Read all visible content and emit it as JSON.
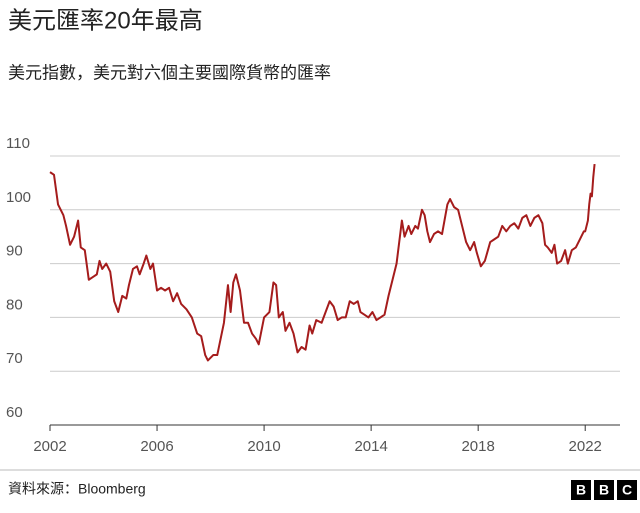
{
  "chart_data": {
    "type": "line",
    "title": "美元匯率20年最高",
    "subtitle": "美元指數，美元對六個主要國際貨幣的匯率",
    "source": "資料來源：Bloomberg",
    "logo": [
      "B",
      "B",
      "C"
    ],
    "x": [
      2002.0,
      2002.15,
      2002.3,
      2002.5,
      2002.6,
      2002.75,
      2002.9,
      2003.05,
      2003.15,
      2003.3,
      2003.45,
      2003.6,
      2003.75,
      2003.85,
      2003.95,
      2004.1,
      2004.25,
      2004.4,
      2004.55,
      2004.7,
      2004.85,
      2004.95,
      2005.1,
      2005.25,
      2005.35,
      2005.5,
      2005.6,
      2005.75,
      2005.85,
      2006.0,
      2006.15,
      2006.3,
      2006.45,
      2006.6,
      2006.75,
      2006.9,
      2007.1,
      2007.3,
      2007.5,
      2007.65,
      2007.8,
      2007.9,
      2008.1,
      2008.25,
      2008.5,
      2008.65,
      2008.75,
      2008.85,
      2008.95,
      2009.1,
      2009.25,
      2009.4,
      2009.55,
      2009.7,
      2009.8,
      2010.0,
      2010.2,
      2010.35,
      2010.45,
      2010.55,
      2010.7,
      2010.8,
      2010.95,
      2011.1,
      2011.25,
      2011.4,
      2011.55,
      2011.7,
      2011.8,
      2011.95,
      2012.15,
      2012.3,
      2012.45,
      2012.6,
      2012.75,
      2012.9,
      2013.05,
      2013.2,
      2013.35,
      2013.5,
      2013.6,
      2013.75,
      2013.9,
      2014.05,
      2014.2,
      2014.35,
      2014.5,
      2014.65,
      2014.8,
      2014.95,
      2015.15,
      2015.25,
      2015.4,
      2015.5,
      2015.65,
      2015.75,
      2015.9,
      2016.0,
      2016.1,
      2016.2,
      2016.35,
      2016.5,
      2016.65,
      2016.85,
      2016.95,
      2017.1,
      2017.25,
      2017.4,
      2017.55,
      2017.7,
      2017.85,
      2017.95,
      2018.1,
      2018.25,
      2018.45,
      2018.6,
      2018.75,
      2018.9,
      2019.05,
      2019.2,
      2019.35,
      2019.5,
      2019.65,
      2019.8,
      2019.95,
      2020.1,
      2020.25,
      2020.4,
      2020.5,
      2020.6,
      2020.75,
      2020.85,
      2020.95,
      2021.1,
      2021.25,
      2021.35,
      2021.5,
      2021.65,
      2021.8,
      2021.95,
      2022.0,
      2022.1,
      2022.15,
      2022.2,
      2022.25,
      2022.3,
      2022.35
    ],
    "series": [
      {
        "color": "#a51c1c",
        "values": [
          107,
          106.5,
          101,
          99,
          97,
          93.5,
          95,
          98,
          93,
          92.5,
          87,
          87.5,
          88,
          90.5,
          89,
          90,
          88.5,
          83,
          81,
          84,
          83.5,
          86,
          89,
          89.5,
          88,
          90,
          91.5,
          89,
          90,
          85,
          85.5,
          85,
          85.5,
          83,
          84.5,
          82.5,
          81.5,
          80,
          77,
          76.5,
          73,
          72,
          73,
          73,
          79,
          86,
          81,
          86.5,
          88,
          85,
          79,
          79,
          77,
          76,
          75,
          80,
          81,
          86.5,
          86,
          80,
          81,
          77.5,
          79,
          77,
          73.5,
          74.5,
          74,
          78.5,
          77,
          79.5,
          79,
          81,
          83,
          82,
          79.5,
          80,
          80,
          83,
          82.5,
          83,
          81,
          80.5,
          80,
          81,
          79.5,
          80,
          80.5,
          84,
          87,
          90,
          98,
          95,
          97,
          95.5,
          97,
          96.5,
          100,
          99,
          96,
          94,
          95.5,
          96,
          95.5,
          101,
          102,
          100.5,
          100,
          97,
          94,
          92.5,
          94,
          92,
          89.5,
          90.5,
          94,
          94.5,
          95,
          97,
          96,
          97,
          97.5,
          96.5,
          98.5,
          99,
          97,
          98.5,
          99,
          97.5,
          93.5,
          93,
          92,
          93.5,
          90,
          90.5,
          92.5,
          90,
          92.5,
          93,
          94.5,
          96,
          96,
          98,
          101,
          103,
          102.5,
          106,
          108.5
        ]
      }
    ],
    "xlim": [
      2002,
      2023.3
    ],
    "xticks": [
      2002,
      2006,
      2010,
      2014,
      2018,
      2022
    ],
    "ylim": [
      60,
      110
    ],
    "yticks": [
      60,
      70,
      80,
      90,
      100,
      110
    ],
    "grid": true
  }
}
